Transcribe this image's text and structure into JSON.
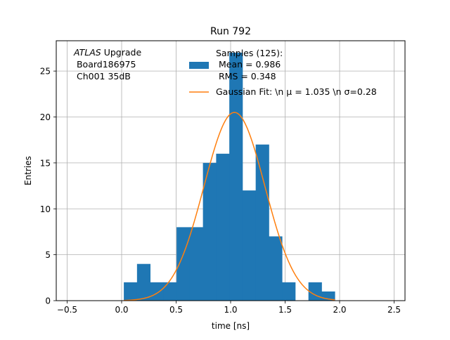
{
  "chart_data": {
    "type": "bar",
    "title": "Run 792",
    "xlabel": "time [ns]",
    "ylabel": "Entries",
    "xlim": [
      -0.6,
      2.6
    ],
    "ylim": [
      0,
      28.3
    ],
    "grid": true,
    "x_ticks": [
      -0.5,
      0.0,
      0.5,
      1.0,
      1.5,
      2.0,
      2.5
    ],
    "x_tick_labels": [
      "−0.5",
      "0.0",
      "0.5",
      "1.0",
      "1.5",
      "2.0",
      "2.5"
    ],
    "y_ticks": [
      0,
      5,
      10,
      15,
      20,
      25
    ],
    "y_tick_labels": [
      "0",
      "5",
      "10",
      "15",
      "20",
      "25"
    ],
    "colors": {
      "histogram": "#1f77b4",
      "fit": "#ff7f0e",
      "grid": "#b0b0b0"
    },
    "annotation": {
      "italic": "ATLAS",
      "rest": " Upgrade",
      "line2": " Board186975",
      "line3": " Ch001 35dB"
    },
    "legend": {
      "placement": "top-center",
      "histogram_lines": [
        "Samples (125):",
        " Mean = 0.986",
        " RMS = 0.348"
      ],
      "fit_label": "Gaussian Fit: \\n μ = 1.035 \\n σ=0.28"
    },
    "series": [
      {
        "type": "histogram",
        "bin_edges": [
          0.02,
          0.141,
          0.262,
          0.383,
          0.504,
          0.625,
          0.746,
          0.867,
          0.988,
          1.109,
          1.23,
          1.351,
          1.472,
          1.593,
          1.714,
          1.835,
          1.956
        ],
        "counts": [
          2,
          4,
          2,
          2,
          8,
          8,
          15,
          16,
          27,
          12,
          17,
          7,
          2,
          0,
          2,
          1
        ]
      },
      {
        "type": "line",
        "model": "gaussian",
        "mu": 1.035,
        "sigma": 0.28,
        "peak": 20.5,
        "x_range": [
          0.02,
          1.956
        ]
      }
    ]
  }
}
